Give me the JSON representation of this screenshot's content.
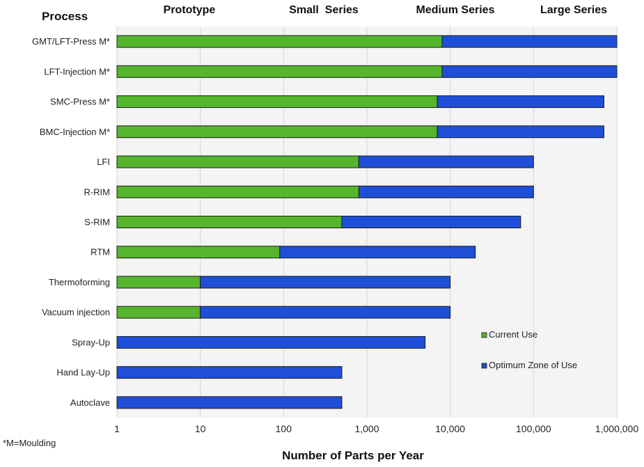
{
  "chart_data": {
    "type": "bar",
    "orientation": "horizontal",
    "stacked": true,
    "x_scale": "log",
    "xlim": [
      1,
      1000000
    ],
    "x_ticks": [
      1,
      10,
      100,
      1000,
      10000,
      100000,
      1000000
    ],
    "x_tick_labels": [
      "1",
      "10",
      "100",
      "1,000",
      "10,000",
      "100,000",
      "1,000,000"
    ],
    "xlabel": "Number of Parts per Year",
    "category_header": "Process",
    "phases": [
      "Prototype",
      "Small  Series",
      "Medium Series",
      "Large Series"
    ],
    "footnote": "*M=Moulding",
    "grid": true,
    "legend_position": "right",
    "categories": [
      "GMT/LFT-Press M*",
      "LFT-Injection M*",
      "SMC-Press M*",
      "BMC-Injection M*",
      "LFI",
      "R-RIM",
      "S-RIM",
      "RTM",
      "Thermoforming",
      "Vacuum injection",
      "Spray-Up",
      "Hand Lay-Up",
      "Autoclave"
    ],
    "series": [
      {
        "name": "Current Use",
        "color": "#55b52c",
        "ranges": [
          [
            1,
            8000
          ],
          [
            1,
            8000
          ],
          [
            1,
            7000
          ],
          [
            1,
            7000
          ],
          [
            1,
            800
          ],
          [
            1,
            800
          ],
          [
            1,
            500
          ],
          [
            1,
            90
          ],
          [
            1,
            10
          ],
          [
            1,
            10
          ],
          null,
          null,
          null
        ]
      },
      {
        "name": "Optimum Zone of Use",
        "color": "#1f4fd8",
        "ranges": [
          [
            8000,
            1000000
          ],
          [
            8000,
            1000000
          ],
          [
            7000,
            700000
          ],
          [
            7000,
            700000
          ],
          [
            800,
            100000
          ],
          [
            800,
            100000
          ],
          [
            500,
            70000
          ],
          [
            90,
            20000
          ],
          [
            10,
            10000
          ],
          [
            10,
            10000
          ],
          [
            1,
            5000
          ],
          [
            1,
            500
          ],
          [
            1,
            500
          ]
        ]
      }
    ]
  }
}
